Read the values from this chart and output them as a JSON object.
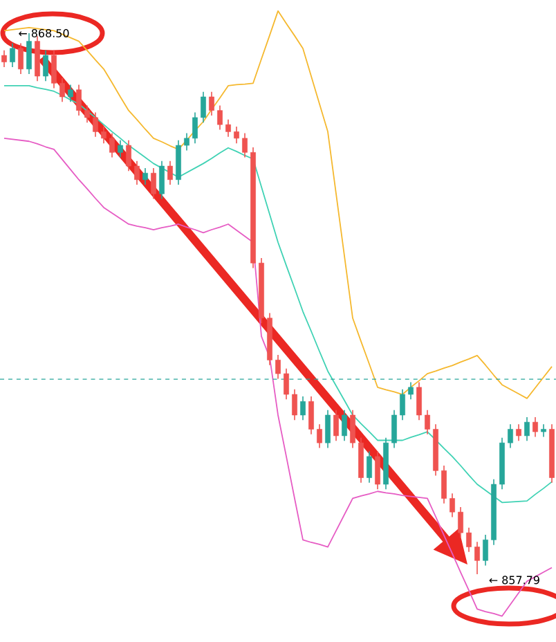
{
  "chart_data": {
    "type": "candlestick",
    "categories": [
      null,
      null,
      null,
      null,
      null,
      null,
      null,
      null,
      null,
      null,
      null,
      null,
      null,
      null,
      null,
      null,
      null,
      null,
      null,
      null,
      null,
      null,
      null,
      null,
      null,
      null,
      null,
      null,
      null,
      null,
      null,
      null,
      null,
      null,
      null,
      null,
      null,
      null,
      null,
      null,
      null,
      null,
      null,
      null,
      null,
      null,
      null,
      null,
      null,
      null,
      null,
      null,
      null,
      null,
      null,
      null,
      null,
      null,
      null,
      null,
      null,
      null,
      null,
      null,
      null,
      null,
      null
    ],
    "ohlc": [
      [
        868.06,
        868.16,
        867.83,
        867.93
      ],
      [
        867.93,
        868.3,
        867.83,
        868.2
      ],
      [
        868.2,
        868.3,
        867.69,
        867.79
      ],
      [
        867.79,
        868.5,
        867.69,
        868.34
      ],
      [
        868.34,
        868.44,
        867.55,
        867.65
      ],
      [
        867.65,
        868.16,
        867.55,
        868.06
      ],
      [
        868.06,
        868.16,
        867.41,
        867.51
      ],
      [
        867.51,
        867.61,
        867.14,
        867.24
      ],
      [
        867.24,
        867.48,
        867.14,
        867.38
      ],
      [
        867.38,
        867.48,
        866.87,
        866.97
      ],
      [
        866.97,
        867.07,
        866.73,
        866.83
      ],
      [
        866.83,
        866.93,
        866.45,
        866.55
      ],
      [
        866.55,
        866.65,
        866.32,
        866.42
      ],
      [
        866.42,
        866.52,
        866.04,
        866.14
      ],
      [
        866.14,
        866.38,
        866.04,
        866.28
      ],
      [
        866.28,
        866.38,
        865.77,
        865.87
      ],
      [
        865.87,
        865.97,
        865.5,
        865.6
      ],
      [
        865.6,
        865.83,
        865.5,
        865.73
      ],
      [
        865.73,
        865.83,
        865.22,
        865.32
      ],
      [
        865.32,
        865.97,
        865.22,
        865.87
      ],
      [
        865.87,
        865.97,
        865.5,
        865.6
      ],
      [
        865.6,
        866.38,
        865.5,
        866.28
      ],
      [
        866.28,
        866.52,
        866.18,
        866.42
      ],
      [
        866.42,
        866.93,
        866.32,
        866.83
      ],
      [
        866.83,
        867.34,
        866.73,
        867.24
      ],
      [
        867.24,
        867.34,
        866.87,
        866.97
      ],
      [
        866.97,
        867.07,
        866.59,
        866.69
      ],
      [
        866.69,
        866.79,
        866.45,
        866.55
      ],
      [
        866.55,
        866.65,
        866.32,
        866.42
      ],
      [
        866.42,
        866.52,
        866.04,
        866.14
      ],
      [
        866.14,
        866.24,
        863.85,
        863.95
      ],
      [
        863.95,
        864.05,
        862.76,
        862.86
      ],
      [
        862.86,
        862.96,
        861.93,
        862.03
      ],
      [
        862.03,
        862.13,
        861.66,
        861.76
      ],
      [
        861.76,
        861.86,
        861.25,
        861.35
      ],
      [
        861.35,
        861.45,
        860.84,
        860.94
      ],
      [
        860.94,
        861.31,
        860.84,
        861.21
      ],
      [
        861.21,
        861.31,
        860.56,
        860.66
      ],
      [
        860.66,
        860.76,
        860.29,
        860.39
      ],
      [
        860.39,
        861.04,
        860.29,
        860.94
      ],
      [
        860.94,
        861.04,
        860.43,
        860.53
      ],
      [
        860.53,
        861.04,
        860.43,
        860.94
      ],
      [
        860.94,
        861.04,
        860.29,
        860.39
      ],
      [
        860.39,
        860.49,
        859.6,
        859.7
      ],
      [
        859.7,
        860.22,
        859.6,
        860.12
      ],
      [
        860.12,
        860.22,
        859.47,
        859.57
      ],
      [
        859.57,
        860.49,
        859.47,
        860.39
      ],
      [
        860.39,
        861.04,
        860.29,
        860.94
      ],
      [
        860.94,
        861.45,
        860.84,
        861.35
      ],
      [
        861.35,
        861.59,
        861.25,
        861.49
      ],
      [
        861.49,
        861.59,
        860.84,
        860.94
      ],
      [
        860.94,
        861.04,
        860.56,
        860.66
      ],
      [
        860.66,
        860.76,
        859.74,
        859.84
      ],
      [
        859.84,
        859.94,
        859.19,
        859.29
      ],
      [
        859.29,
        859.39,
        858.92,
        859.02
      ],
      [
        859.02,
        859.12,
        858.51,
        858.61
      ],
      [
        858.61,
        858.71,
        858.23,
        858.33
      ],
      [
        858.33,
        858.43,
        857.79,
        858.06
      ],
      [
        858.06,
        858.57,
        857.96,
        858.47
      ],
      [
        858.47,
        859.67,
        858.37,
        859.57
      ],
      [
        859.57,
        860.49,
        859.47,
        860.39
      ],
      [
        860.39,
        860.76,
        860.29,
        860.66
      ],
      [
        860.66,
        860.76,
        860.43,
        860.53
      ],
      [
        860.53,
        860.9,
        860.43,
        860.8
      ],
      [
        860.8,
        860.9,
        860.51,
        860.61
      ],
      [
        860.61,
        860.76,
        860.51,
        860.66
      ],
      [
        860.66,
        860.76,
        859.6,
        859.7
      ]
    ],
    "colors": [
      "#ef5350",
      "#26a69a",
      "#ef5350",
      "#26a69a",
      "#ef5350",
      "#26a69a",
      "#ef5350",
      "#ef5350",
      "#26a69a",
      "#ef5350",
      "#ef5350",
      "#ef5350",
      "#ef5350",
      "#ef5350",
      "#26a69a",
      "#ef5350",
      "#ef5350",
      "#26a69a",
      "#ef5350",
      "#26a69a",
      "#ef5350",
      "#26a69a",
      "#26a69a",
      "#26a69a",
      "#26a69a",
      "#ef5350",
      "#ef5350",
      "#ef5350",
      "#ef5350",
      "#ef5350",
      "#ef5350",
      "#ef5350",
      "#ef5350",
      "#ef5350",
      "#ef5350",
      "#ef5350",
      "#26a69a",
      "#ef5350",
      "#ef5350",
      "#26a69a",
      "#ef5350",
      "#26a69a",
      "#ef5350",
      "#ef5350",
      "#26a69a",
      "#ef5350",
      "#26a69a",
      "#26a69a",
      "#26a69a",
      "#26a69a",
      "#ef5350",
      "#ef5350",
      "#ef5350",
      "#ef5350",
      "#ef5350",
      "#ef5350",
      "#ef5350",
      "#ef5350",
      "#26a69a",
      "#26a69a",
      "#26a69a",
      "#26a69a",
      "#ef5350",
      "#26a69a",
      "#ef5350",
      "#26a69a",
      "#ef5350"
    ],
    "series": [
      {
        "type": "line",
        "color": "#f5b82e",
        "values": [
          868.55,
          868.57,
          868.59,
          868.61,
          868.59,
          868.57,
          868.55,
          868.48,
          868.41,
          868.34,
          868.16,
          867.97,
          867.79,
          867.52,
          867.24,
          866.97,
          866.79,
          866.6,
          866.42,
          866.35,
          866.27,
          866.2,
          866.38,
          866.57,
          866.75,
          866.99,
          867.22,
          867.46,
          867.48,
          867.49,
          867.51,
          867.99,
          868.46,
          868.94,
          868.69,
          868.45,
          868.2,
          867.65,
          867.1,
          866.55,
          865.32,
          864.09,
          862.86,
          862.4,
          861.95,
          861.49,
          861.44,
          861.4,
          861.35,
          861.49,
          861.62,
          861.76,
          861.81,
          861.87,
          861.92,
          861.99,
          862.05,
          862.12,
          861.93,
          861.73,
          861.54,
          861.45,
          861.36,
          861.27,
          861.48,
          861.69,
          861.9
        ]
      },
      {
        "type": "line",
        "color": "#3fd2b4",
        "values": [
          867.46,
          867.46,
          867.46,
          867.46,
          867.42,
          867.39,
          867.35,
          867.27,
          867.18,
          867.1,
          866.96,
          866.83,
          866.69,
          866.55,
          866.42,
          866.28,
          866.16,
          866.04,
          865.92,
          865.83,
          865.74,
          865.65,
          865.74,
          865.83,
          865.92,
          866.02,
          866.13,
          866.23,
          866.16,
          866.08,
          866.01,
          865.46,
          864.91,
          864.36,
          863.9,
          863.45,
          862.99,
          862.6,
          862.2,
          861.81,
          861.52,
          861.23,
          860.94,
          860.77,
          860.61,
          860.44,
          860.44,
          860.44,
          860.44,
          860.5,
          860.55,
          860.61,
          860.45,
          860.28,
          860.12,
          859.94,
          859.75,
          859.57,
          859.45,
          859.33,
          859.21,
          859.22,
          859.23,
          859.24,
          859.37,
          859.49,
          859.62
        ]
      },
      {
        "type": "line",
        "color": "#e65cc4",
        "values": [
          866.42,
          866.4,
          866.38,
          866.36,
          866.31,
          866.25,
          866.2,
          866.0,
          865.8,
          865.6,
          865.42,
          865.23,
          865.05,
          864.94,
          864.83,
          864.72,
          864.68,
          864.65,
          864.61,
          864.65,
          864.68,
          864.72,
          864.66,
          864.61,
          864.55,
          864.61,
          864.66,
          864.72,
          864.6,
          864.48,
          864.36,
          862.5,
          862.08,
          860.94,
          860.12,
          859.29,
          858.47,
          858.42,
          858.38,
          858.33,
          858.65,
          858.97,
          859.29,
          859.34,
          859.38,
          859.43,
          859.4,
          859.38,
          859.35,
          859.33,
          859.31,
          859.29,
          858.93,
          858.56,
          858.2,
          857.83,
          857.47,
          857.1,
          857.05,
          857.01,
          856.96,
          857.19,
          857.42,
          857.65,
          857.74,
          857.83,
          857.92
        ]
      }
    ],
    "ref_lines": [
      {
        "axis": "y",
        "value": 861.65,
        "color": "#26a69a",
        "line_style": "dashed"
      }
    ],
    "annotations": [
      "← 868.50",
      "← 857.79"
    ],
    "tick_labels": false
  }
}
